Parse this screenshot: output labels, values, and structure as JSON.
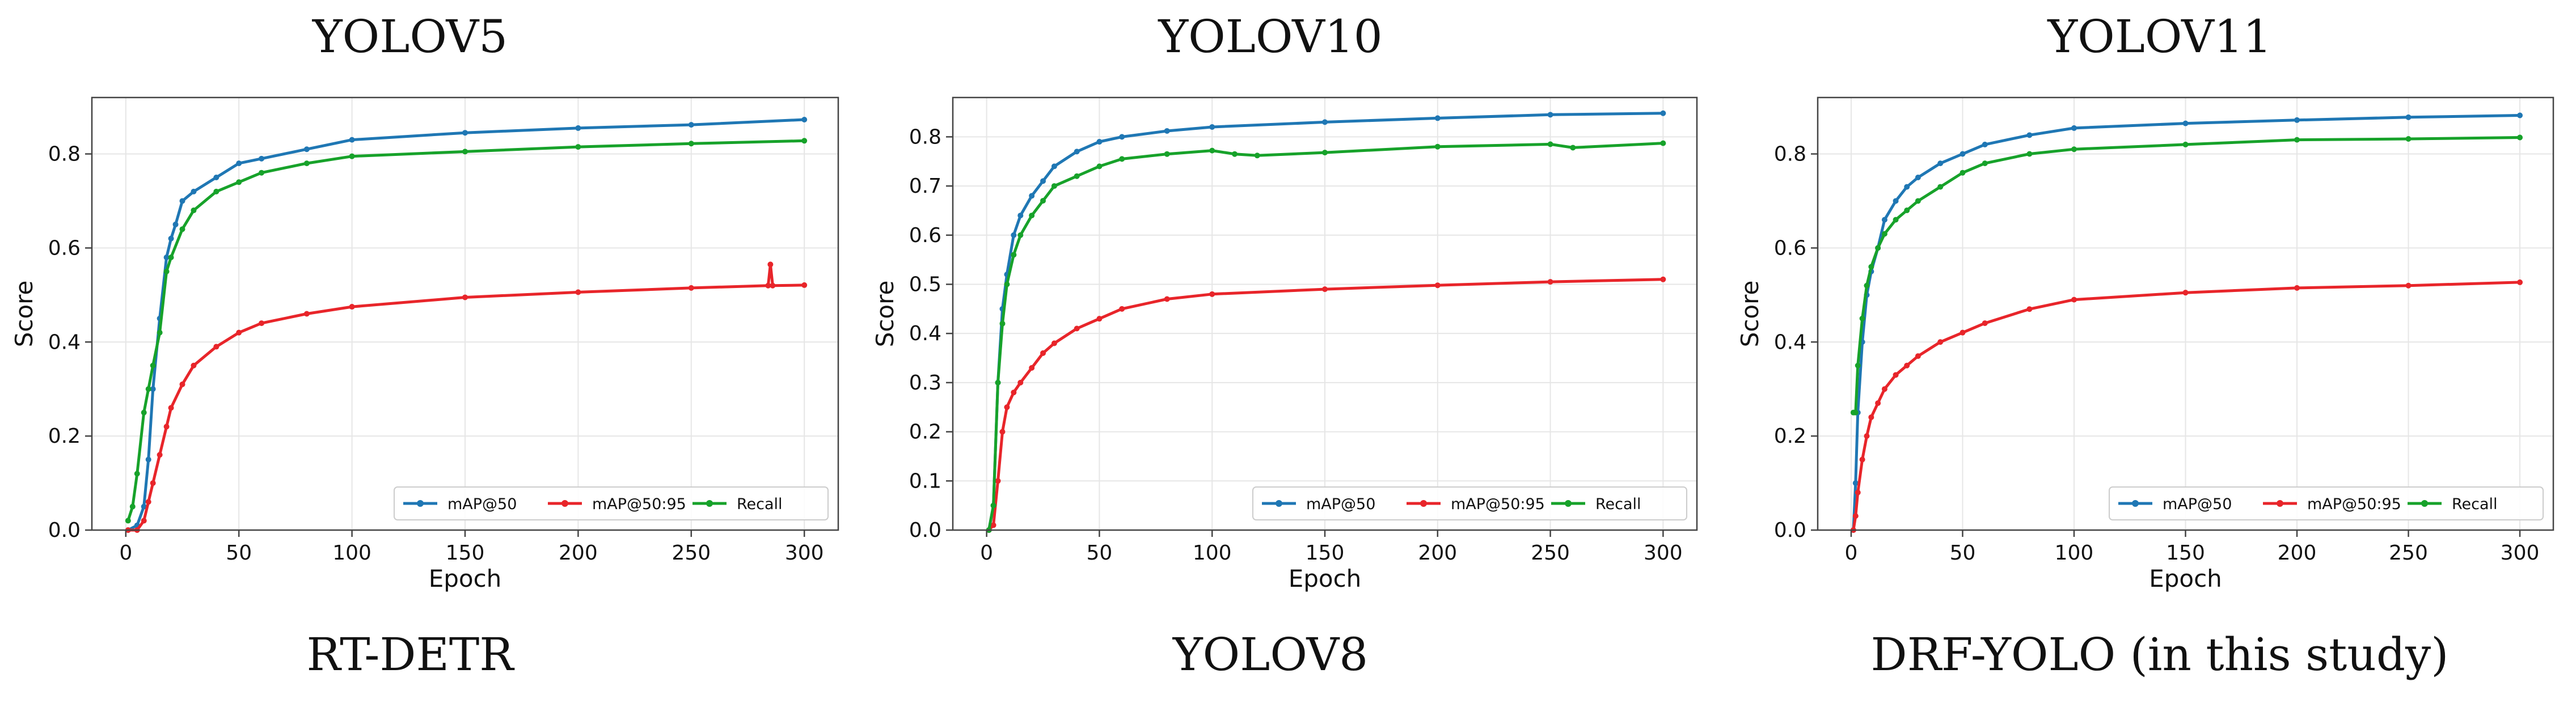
{
  "colors": {
    "mAP@50": "#1f77b4",
    "mAP@50:95": "#e8252a",
    "Recall": "#17a22a",
    "grid": "#e6e6e6",
    "frame": "#444444"
  },
  "axis_common": {
    "xlabel": "Epoch",
    "ylabel": "Score",
    "xticks": [
      0,
      50,
      100,
      150,
      200,
      250,
      300
    ],
    "xlim": [
      -15,
      315
    ],
    "grid": true,
    "legend_position": "lower-right",
    "legend_entries": [
      "mAP@50",
      "mAP@50:95",
      "Recall"
    ]
  },
  "captions": [
    "RT-DETR",
    "YOLOV8",
    "DRF-YOLO (in this study)"
  ],
  "chart_data": [
    {
      "type": "line",
      "title": "YOLOV5",
      "xlabel": "Epoch",
      "ylabel": "Score",
      "xlim": [
        -15,
        315
      ],
      "ylim": [
        0,
        0.92
      ],
      "yticks": [
        "0.0",
        "0.2",
        "0.4",
        "0.6",
        "0.8"
      ],
      "grid": true,
      "legend": "lower-right",
      "series": [
        {
          "name": "mAP@50",
          "x": [
            1,
            5,
            8,
            10,
            12,
            15,
            18,
            20,
            22,
            25,
            30,
            40,
            50,
            60,
            80,
            100,
            150,
            200,
            250,
            300
          ],
          "y": [
            0.0,
            0.01,
            0.05,
            0.15,
            0.3,
            0.45,
            0.58,
            0.62,
            0.65,
            0.7,
            0.72,
            0.75,
            0.78,
            0.79,
            0.81,
            0.83,
            0.845,
            0.855,
            0.862,
            0.873
          ]
        },
        {
          "name": "mAP@50:95",
          "x": [
            1,
            5,
            8,
            10,
            12,
            15,
            18,
            20,
            25,
            30,
            40,
            50,
            60,
            80,
            100,
            150,
            200,
            250,
            284,
            285,
            286,
            300
          ],
          "y": [
            0.0,
            0.0,
            0.02,
            0.06,
            0.1,
            0.16,
            0.22,
            0.26,
            0.31,
            0.35,
            0.39,
            0.42,
            0.44,
            0.46,
            0.475,
            0.495,
            0.506,
            0.515,
            0.52,
            0.565,
            0.52,
            0.521
          ]
        },
        {
          "name": "Recall",
          "x": [
            1,
            3,
            5,
            8,
            10,
            12,
            15,
            18,
            20,
            25,
            30,
            40,
            50,
            60,
            80,
            100,
            150,
            200,
            250,
            300
          ],
          "y": [
            0.02,
            0.05,
            0.12,
            0.25,
            0.3,
            0.35,
            0.42,
            0.55,
            0.58,
            0.64,
            0.68,
            0.72,
            0.74,
            0.76,
            0.78,
            0.795,
            0.805,
            0.815,
            0.822,
            0.828
          ]
        }
      ]
    },
    {
      "type": "line",
      "title": "YOLOV10",
      "xlabel": "Epoch",
      "ylabel": "Score",
      "xlim": [
        -15,
        315
      ],
      "ylim": [
        0,
        0.88
      ],
      "yticks": [
        "0.0",
        "0.1",
        "0.2",
        "0.3",
        "0.4",
        "0.5",
        "0.6",
        "0.7",
        "0.8"
      ],
      "grid": true,
      "legend": "lower-right",
      "series": [
        {
          "name": "mAP@50",
          "x": [
            1,
            3,
            5,
            7,
            9,
            12,
            15,
            20,
            25,
            30,
            40,
            50,
            60,
            80,
            100,
            150,
            200,
            250,
            300
          ],
          "y": [
            0.0,
            0.05,
            0.3,
            0.45,
            0.52,
            0.6,
            0.64,
            0.68,
            0.71,
            0.74,
            0.77,
            0.79,
            0.8,
            0.812,
            0.82,
            0.83,
            0.838,
            0.845,
            0.848
          ]
        },
        {
          "name": "mAP@50:95",
          "x": [
            1,
            3,
            5,
            7,
            9,
            12,
            15,
            20,
            25,
            30,
            40,
            50,
            60,
            80,
            100,
            150,
            200,
            250,
            300
          ],
          "y": [
            0.0,
            0.01,
            0.1,
            0.2,
            0.25,
            0.28,
            0.3,
            0.33,
            0.36,
            0.38,
            0.41,
            0.43,
            0.45,
            0.47,
            0.48,
            0.49,
            0.498,
            0.505,
            0.51
          ]
        },
        {
          "name": "Recall",
          "x": [
            1,
            3,
            5,
            7,
            9,
            12,
            15,
            20,
            25,
            30,
            40,
            50,
            60,
            80,
            100,
            110,
            120,
            150,
            200,
            250,
            260,
            300
          ],
          "y": [
            0.0,
            0.05,
            0.3,
            0.42,
            0.5,
            0.56,
            0.6,
            0.64,
            0.67,
            0.7,
            0.72,
            0.74,
            0.755,
            0.765,
            0.772,
            0.765,
            0.762,
            0.768,
            0.78,
            0.785,
            0.778,
            0.787
          ]
        }
      ]
    },
    {
      "type": "line",
      "title": "YOLOV11",
      "xlabel": "Epoch",
      "ylabel": "Score",
      "xlim": [
        -15,
        315
      ],
      "ylim": [
        0,
        0.92
      ],
      "yticks": [
        "0.0",
        "0.2",
        "0.4",
        "0.6",
        "0.8"
      ],
      "grid": true,
      "legend": "lower-right",
      "series": [
        {
          "name": "mAP@50",
          "x": [
            1,
            2,
            3,
            5,
            7,
            9,
            12,
            15,
            20,
            25,
            30,
            40,
            50,
            60,
            80,
            100,
            150,
            200,
            250,
            300
          ],
          "y": [
            0.0,
            0.1,
            0.25,
            0.4,
            0.5,
            0.55,
            0.6,
            0.66,
            0.7,
            0.73,
            0.75,
            0.78,
            0.8,
            0.82,
            0.84,
            0.855,
            0.865,
            0.872,
            0.878,
            0.882
          ]
        },
        {
          "name": "mAP@50:95",
          "x": [
            1,
            2,
            3,
            5,
            7,
            9,
            12,
            15,
            20,
            25,
            30,
            40,
            50,
            60,
            80,
            100,
            150,
            200,
            250,
            300
          ],
          "y": [
            0.0,
            0.03,
            0.08,
            0.15,
            0.2,
            0.24,
            0.27,
            0.3,
            0.33,
            0.35,
            0.37,
            0.4,
            0.42,
            0.44,
            0.47,
            0.49,
            0.505,
            0.515,
            0.52,
            0.527
          ]
        },
        {
          "name": "Recall",
          "x": [
            1,
            2,
            3,
            5,
            7,
            9,
            12,
            15,
            20,
            25,
            30,
            40,
            50,
            60,
            80,
            100,
            150,
            200,
            250,
            300
          ],
          "y": [
            0.25,
            0.25,
            0.35,
            0.45,
            0.52,
            0.56,
            0.6,
            0.63,
            0.66,
            0.68,
            0.7,
            0.73,
            0.76,
            0.78,
            0.8,
            0.81,
            0.82,
            0.83,
            0.832,
            0.835
          ]
        }
      ]
    }
  ]
}
